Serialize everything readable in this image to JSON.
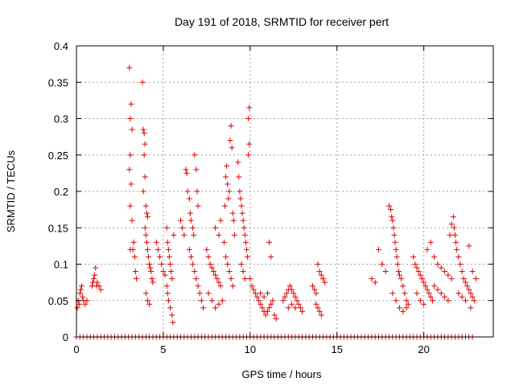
{
  "chart_data": {
    "type": "scatter",
    "title": "Day 191 of 2018, SRMTID for receiver pert",
    "xlabel": "GPS time / hours",
    "ylabel": "SRMTID / TECUs",
    "xlim": [
      0,
      24
    ],
    "ylim": [
      0,
      0.4
    ],
    "x_ticks": [
      0,
      5,
      10,
      15,
      20
    ],
    "x_tick_labels": [
      "0",
      "5",
      "10",
      "15",
      "20"
    ],
    "y_ticks": [
      0,
      0.05,
      0.1,
      0.15,
      0.2,
      0.25,
      0.3,
      0.35,
      0.4
    ],
    "y_tick_labels": [
      "0",
      "0.05",
      "0.1",
      "0.15",
      "0.2",
      "0.25",
      "0.3",
      "0.35",
      "0.4"
    ],
    "grid": true,
    "marker": "plus",
    "color": "#e00000",
    "series": [
      {
        "name": "SRMTID",
        "points": [
          [
            0.05,
            0.04
          ],
          [
            0.1,
            0.05
          ],
          [
            0.15,
            0.045
          ],
          [
            0.2,
            0.06
          ],
          [
            0.25,
            0.065
          ],
          [
            0.3,
            0.07
          ],
          [
            0.35,
            0.055
          ],
          [
            0.4,
            0.05
          ],
          [
            0.5,
            0.045
          ],
          [
            0.6,
            0.05
          ],
          [
            0.9,
            0.07
          ],
          [
            0.95,
            0.075
          ],
          [
            1.0,
            0.08
          ],
          [
            1.05,
            0.085
          ],
          [
            1.1,
            0.095
          ],
          [
            1.15,
            0.07
          ],
          [
            1.2,
            0.075
          ],
          [
            1.3,
            0.07
          ],
          [
            1.4,
            0.065
          ],
          [
            3.05,
            0.37
          ],
          [
            3.1,
            0.3
          ],
          [
            3.15,
            0.32
          ],
          [
            3.2,
            0.285
          ],
          [
            3.1,
            0.25
          ],
          [
            3.05,
            0.23
          ],
          [
            3.15,
            0.21
          ],
          [
            3.1,
            0.18
          ],
          [
            3.2,
            0.16
          ],
          [
            3.1,
            0.12
          ],
          [
            3.25,
            0.12
          ],
          [
            3.3,
            0.13
          ],
          [
            3.35,
            0.11
          ],
          [
            3.4,
            0.09
          ],
          [
            3.45,
            0.08
          ],
          [
            3.8,
            0.35
          ],
          [
            3.85,
            0.285
          ],
          [
            3.9,
            0.28
          ],
          [
            3.95,
            0.265
          ],
          [
            3.9,
            0.25
          ],
          [
            3.95,
            0.22
          ],
          [
            3.85,
            0.2
          ],
          [
            4.0,
            0.18
          ],
          [
            4.05,
            0.17
          ],
          [
            4.1,
            0.165
          ],
          [
            3.95,
            0.15
          ],
          [
            4.0,
            0.14
          ],
          [
            4.05,
            0.13
          ],
          [
            4.1,
            0.12
          ],
          [
            4.15,
            0.11
          ],
          [
            4.2,
            0.1
          ],
          [
            4.25,
            0.095
          ],
          [
            4.3,
            0.09
          ],
          [
            4.35,
            0.08
          ],
          [
            4.4,
            0.075
          ],
          [
            4.0,
            0.06
          ],
          [
            4.1,
            0.05
          ],
          [
            4.2,
            0.045
          ],
          [
            4.6,
            0.13
          ],
          [
            4.7,
            0.12
          ],
          [
            4.8,
            0.11
          ],
          [
            4.9,
            0.1
          ],
          [
            5.0,
            0.09
          ],
          [
            5.1,
            0.085
          ],
          [
            5.2,
            0.15
          ],
          [
            5.25,
            0.13
          ],
          [
            5.3,
            0.12
          ],
          [
            5.35,
            0.11
          ],
          [
            5.4,
            0.1
          ],
          [
            5.45,
            0.09
          ],
          [
            5.5,
            0.08
          ],
          [
            5.2,
            0.07
          ],
          [
            5.25,
            0.06
          ],
          [
            5.3,
            0.05
          ],
          [
            5.4,
            0.04
          ],
          [
            5.5,
            0.03
          ],
          [
            5.55,
            0.02
          ],
          [
            5.6,
            0.14
          ],
          [
            6.0,
            0.16
          ],
          [
            6.1,
            0.15
          ],
          [
            6.2,
            0.14
          ],
          [
            6.3,
            0.23
          ],
          [
            6.35,
            0.225
          ],
          [
            6.4,
            0.2
          ],
          [
            6.5,
            0.19
          ],
          [
            6.55,
            0.17
          ],
          [
            6.6,
            0.16
          ],
          [
            6.7,
            0.15
          ],
          [
            6.75,
            0.14
          ],
          [
            6.8,
            0.25
          ],
          [
            6.9,
            0.23
          ],
          [
            6.95,
            0.2
          ],
          [
            7.0,
            0.18
          ],
          [
            6.5,
            0.12
          ],
          [
            6.6,
            0.11
          ],
          [
            6.7,
            0.1
          ],
          [
            6.8,
            0.09
          ],
          [
            6.9,
            0.08
          ],
          [
            7.0,
            0.07
          ],
          [
            7.1,
            0.06
          ],
          [
            7.2,
            0.05
          ],
          [
            7.3,
            0.04
          ],
          [
            7.5,
            0.12
          ],
          [
            7.6,
            0.11
          ],
          [
            7.7,
            0.1
          ],
          [
            7.8,
            0.095
          ],
          [
            7.9,
            0.09
          ],
          [
            8.0,
            0.085
          ],
          [
            8.1,
            0.08
          ],
          [
            8.2,
            0.075
          ],
          [
            8.3,
            0.07
          ],
          [
            7.6,
            0.06
          ],
          [
            7.8,
            0.05
          ],
          [
            8.0,
            0.04
          ],
          [
            8.2,
            0.045
          ],
          [
            8.4,
            0.05
          ],
          [
            8.0,
            0.15
          ],
          [
            8.2,
            0.14
          ],
          [
            8.3,
            0.16
          ],
          [
            8.5,
            0.13
          ],
          [
            8.55,
            0.18
          ],
          [
            8.6,
            0.22
          ],
          [
            8.65,
            0.235
          ],
          [
            8.7,
            0.21
          ],
          [
            8.75,
            0.19
          ],
          [
            8.8,
            0.2
          ],
          [
            8.85,
            0.27
          ],
          [
            8.9,
            0.29
          ],
          [
            8.95,
            0.26
          ],
          [
            9.0,
            0.17
          ],
          [
            9.05,
            0.16
          ],
          [
            9.1,
            0.14
          ],
          [
            8.6,
            0.11
          ],
          [
            8.7,
            0.1
          ],
          [
            8.8,
            0.09
          ],
          [
            8.9,
            0.08
          ],
          [
            9.0,
            0.07
          ],
          [
            9.3,
            0.24
          ],
          [
            9.35,
            0.22
          ],
          [
            9.4,
            0.2
          ],
          [
            9.45,
            0.19
          ],
          [
            9.5,
            0.18
          ],
          [
            9.55,
            0.17
          ],
          [
            9.6,
            0.16
          ],
          [
            9.65,
            0.15
          ],
          [
            9.7,
            0.14
          ],
          [
            9.75,
            0.13
          ],
          [
            9.8,
            0.12
          ],
          [
            9.85,
            0.11
          ],
          [
            9.9,
            0.3
          ],
          [
            9.95,
            0.315
          ],
          [
            9.95,
            0.265
          ],
          [
            9.9,
            0.25
          ],
          [
            9.5,
            0.1
          ],
          [
            9.6,
            0.09
          ],
          [
            9.7,
            0.08
          ],
          [
            10.0,
            0.08
          ],
          [
            10.1,
            0.07
          ],
          [
            10.2,
            0.065
          ],
          [
            10.3,
            0.06
          ],
          [
            10.4,
            0.055
          ],
          [
            10.5,
            0.05
          ],
          [
            10.6,
            0.045
          ],
          [
            10.7,
            0.04
          ],
          [
            10.8,
            0.035
          ],
          [
            10.9,
            0.03
          ],
          [
            11.0,
            0.035
          ],
          [
            11.1,
            0.04
          ],
          [
            11.2,
            0.045
          ],
          [
            11.3,
            0.05
          ],
          [
            11.4,
            0.03
          ],
          [
            11.5,
            0.025
          ],
          [
            11.1,
            0.13
          ],
          [
            11.2,
            0.11
          ],
          [
            10.6,
            0.06
          ],
          [
            10.8,
            0.055
          ],
          [
            11.0,
            0.06
          ],
          [
            11.9,
            0.05
          ],
          [
            12.0,
            0.055
          ],
          [
            12.1,
            0.06
          ],
          [
            12.2,
            0.065
          ],
          [
            12.3,
            0.07
          ],
          [
            12.4,
            0.065
          ],
          [
            12.5,
            0.06
          ],
          [
            12.6,
            0.055
          ],
          [
            12.7,
            0.05
          ],
          [
            12.8,
            0.045
          ],
          [
            12.9,
            0.04
          ],
          [
            13.0,
            0.035
          ],
          [
            12.2,
            0.04
          ],
          [
            12.4,
            0.045
          ],
          [
            12.6,
            0.04
          ],
          [
            13.6,
            0.07
          ],
          [
            13.7,
            0.065
          ],
          [
            13.8,
            0.06
          ],
          [
            13.9,
            0.1
          ],
          [
            14.0,
            0.09
          ],
          [
            14.1,
            0.085
          ],
          [
            14.2,
            0.08
          ],
          [
            14.3,
            0.075
          ],
          [
            13.8,
            0.045
          ],
          [
            13.9,
            0.04
          ],
          [
            14.0,
            0.035
          ],
          [
            14.1,
            0.03
          ],
          [
            17.0,
            0.08
          ],
          [
            17.2,
            0.075
          ],
          [
            17.4,
            0.12
          ],
          [
            17.6,
            0.1
          ],
          [
            17.8,
            0.09
          ],
          [
            18.0,
            0.18
          ],
          [
            18.1,
            0.175
          ],
          [
            18.15,
            0.165
          ],
          [
            18.2,
            0.16
          ],
          [
            18.25,
            0.15
          ],
          [
            18.3,
            0.14
          ],
          [
            18.35,
            0.13
          ],
          [
            18.4,
            0.12
          ],
          [
            18.45,
            0.11
          ],
          [
            18.5,
            0.1
          ],
          [
            18.55,
            0.09
          ],
          [
            18.6,
            0.085
          ],
          [
            18.7,
            0.08
          ],
          [
            18.8,
            0.07
          ],
          [
            18.9,
            0.06
          ],
          [
            19.0,
            0.05
          ],
          [
            19.1,
            0.045
          ],
          [
            18.2,
            0.06
          ],
          [
            18.4,
            0.05
          ],
          [
            18.6,
            0.04
          ],
          [
            18.8,
            0.035
          ],
          [
            19.0,
            0.04
          ],
          [
            19.4,
            0.11
          ],
          [
            19.5,
            0.1
          ],
          [
            19.6,
            0.095
          ],
          [
            19.7,
            0.09
          ],
          [
            19.8,
            0.085
          ],
          [
            19.9,
            0.08
          ],
          [
            20.0,
            0.075
          ],
          [
            20.1,
            0.07
          ],
          [
            20.2,
            0.065
          ],
          [
            20.3,
            0.06
          ],
          [
            20.4,
            0.055
          ],
          [
            20.5,
            0.05
          ],
          [
            19.6,
            0.06
          ],
          [
            19.8,
            0.05
          ],
          [
            20.0,
            0.045
          ],
          [
            20.2,
            0.12
          ],
          [
            20.4,
            0.13
          ],
          [
            20.6,
            0.11
          ],
          [
            20.8,
            0.1
          ],
          [
            21.0,
            0.095
          ],
          [
            21.2,
            0.09
          ],
          [
            21.4,
            0.085
          ],
          [
            21.6,
            0.08
          ],
          [
            20.6,
            0.07
          ],
          [
            20.8,
            0.065
          ],
          [
            21.0,
            0.06
          ],
          [
            21.2,
            0.055
          ],
          [
            21.4,
            0.05
          ],
          [
            21.5,
            0.14
          ],
          [
            21.6,
            0.155
          ],
          [
            21.7,
            0.165
          ],
          [
            21.75,
            0.15
          ],
          [
            21.8,
            0.14
          ],
          [
            21.85,
            0.13
          ],
          [
            21.9,
            0.12
          ],
          [
            22.0,
            0.11
          ],
          [
            22.1,
            0.1
          ],
          [
            22.2,
            0.09
          ],
          [
            22.3,
            0.08
          ],
          [
            22.4,
            0.075
          ],
          [
            22.5,
            0.07
          ],
          [
            22.6,
            0.065
          ],
          [
            22.7,
            0.06
          ],
          [
            22.8,
            0.055
          ],
          [
            22.9,
            0.05
          ],
          [
            22.0,
            0.06
          ],
          [
            22.2,
            0.055
          ],
          [
            22.4,
            0.05
          ],
          [
            22.6,
            0.125
          ],
          [
            22.8,
            0.09
          ],
          [
            23.0,
            0.08
          ],
          [
            22.7,
            0.04
          ]
        ],
        "zero_points_x": [
          0.0,
          0.2,
          0.4,
          0.6,
          0.8,
          1.0,
          1.2,
          1.4,
          1.6,
          1.8,
          2.0,
          2.2,
          2.4,
          2.6,
          2.8,
          3.0,
          3.2,
          3.4,
          3.6,
          3.8,
          4.0,
          4.2,
          4.4,
          4.6,
          4.8,
          5.0,
          5.2,
          5.4,
          5.6,
          5.8,
          6.0,
          6.2,
          6.4,
          6.6,
          6.8,
          7.0,
          7.2,
          7.4,
          7.6,
          7.8,
          8.0,
          8.2,
          8.4,
          8.6,
          8.8,
          9.0,
          9.2,
          9.4,
          9.6,
          9.8,
          10.0,
          10.2,
          10.4,
          10.6,
          10.8,
          11.0,
          11.2,
          11.4,
          11.6,
          11.8,
          12.0,
          12.2,
          12.4,
          12.6,
          12.8,
          13.0,
          13.2,
          13.4,
          13.6,
          13.8,
          14.0,
          14.2,
          14.4,
          14.6,
          14.8,
          15.0,
          15.2,
          15.4,
          15.6,
          15.8,
          16.0,
          16.2,
          16.4,
          16.6,
          16.8,
          17.0,
          17.2,
          17.4,
          17.6,
          17.8,
          18.0,
          18.2,
          18.4,
          18.6,
          18.8,
          19.0,
          19.2,
          19.4,
          19.6,
          19.8,
          20.0,
          20.2,
          20.4,
          20.6,
          20.8,
          21.0,
          21.2,
          21.4,
          21.6,
          21.8,
          22.0,
          22.2,
          22.4,
          22.6,
          22.8
        ]
      }
    ]
  }
}
